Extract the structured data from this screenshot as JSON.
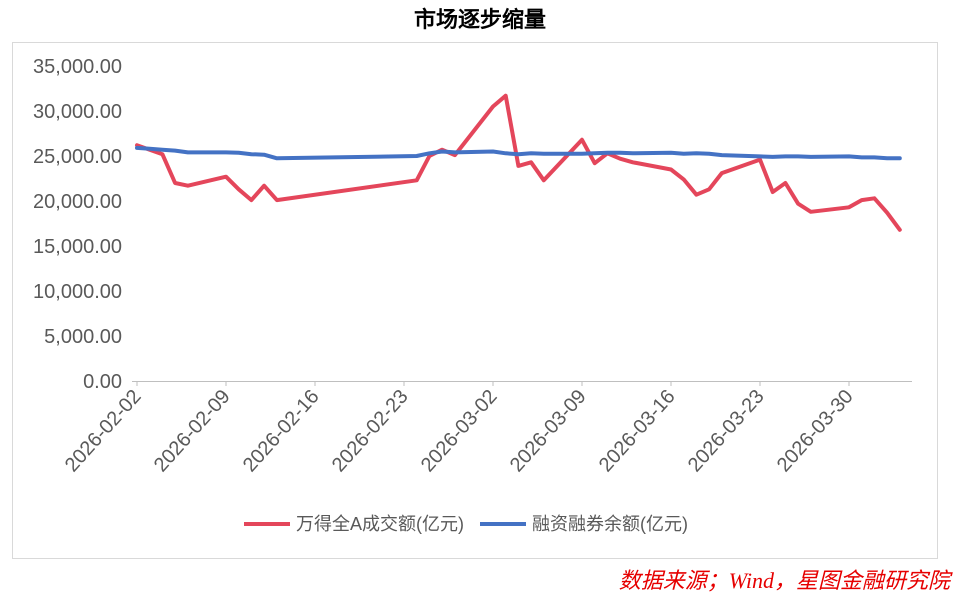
{
  "source": "数据来源；Wind，星图金融研究院",
  "colors": {
    "source_text": "#e60000",
    "axis": "#bfbfbf"
  },
  "chart_data": {
    "type": "line",
    "title": "市场逐步缩量",
    "x_scale": "date",
    "xlim": [
      "2026-02-02",
      "2026-04-03"
    ],
    "ylim": [
      0,
      35000
    ],
    "grid": false,
    "legend": "bottom",
    "y_ticks": [
      0,
      5000,
      10000,
      15000,
      20000,
      25000,
      30000,
      35000
    ],
    "y_tick_labels": [
      "0.00",
      "5,000.00",
      "10,000.00",
      "15,000.00",
      "20,000.00",
      "25,000.00",
      "30,000.00",
      "35,000.00"
    ],
    "x_tick_labels": [
      "2026-02-02",
      "2026-02-09",
      "2026-02-16",
      "2026-02-23",
      "2026-03-02",
      "2026-03-09",
      "2026-03-16",
      "2026-03-23",
      "2026-03-30"
    ],
    "x": [
      "2026-02-02",
      "2026-02-03",
      "2026-02-04",
      "2026-02-05",
      "2026-02-06",
      "2026-02-09",
      "2026-02-10",
      "2026-02-11",
      "2026-02-12",
      "2026-02-13",
      "2026-02-24",
      "2026-02-25",
      "2026-02-26",
      "2026-02-27",
      "2026-03-02",
      "2026-03-03",
      "2026-03-04",
      "2026-03-05",
      "2026-03-06",
      "2026-03-09",
      "2026-03-10",
      "2026-03-11",
      "2026-03-12",
      "2026-03-13",
      "2026-03-16",
      "2026-03-17",
      "2026-03-18",
      "2026-03-19",
      "2026-03-20",
      "2026-03-23",
      "2026-03-24",
      "2026-03-25",
      "2026-03-26",
      "2026-03-27",
      "2026-03-30",
      "2026-03-31",
      "2026-04-01",
      "2026-04-02",
      "2026-04-03"
    ],
    "series": [
      {
        "name": "万得全A成交额(亿元)",
        "color": "#e4465b",
        "values": [
          26200,
          25700,
          25200,
          22000,
          21700,
          22700,
          21300,
          20100,
          21700,
          20100,
          22300,
          25000,
          25700,
          25100,
          30500,
          31700,
          23900,
          24300,
          22300,
          26800,
          24200,
          25300,
          24700,
          24300,
          23500,
          22400,
          20700,
          21300,
          23100,
          24600,
          21000,
          22000,
          19700,
          18800,
          19300,
          20100,
          20300,
          18700,
          16800
        ]
      },
      {
        "name": "融资融券余额(亿元)",
        "color": "#4472c4",
        "values": [
          25900,
          25800,
          25700,
          25600,
          25400,
          25400,
          25350,
          25200,
          25150,
          24750,
          25000,
          25300,
          25500,
          25400,
          25500,
          25300,
          25200,
          25300,
          25250,
          25250,
          25300,
          25350,
          25350,
          25300,
          25350,
          25250,
          25300,
          25250,
          25100,
          24950,
          24900,
          24950,
          24950,
          24900,
          24950,
          24850,
          24850,
          24750,
          24750
        ]
      }
    ]
  }
}
